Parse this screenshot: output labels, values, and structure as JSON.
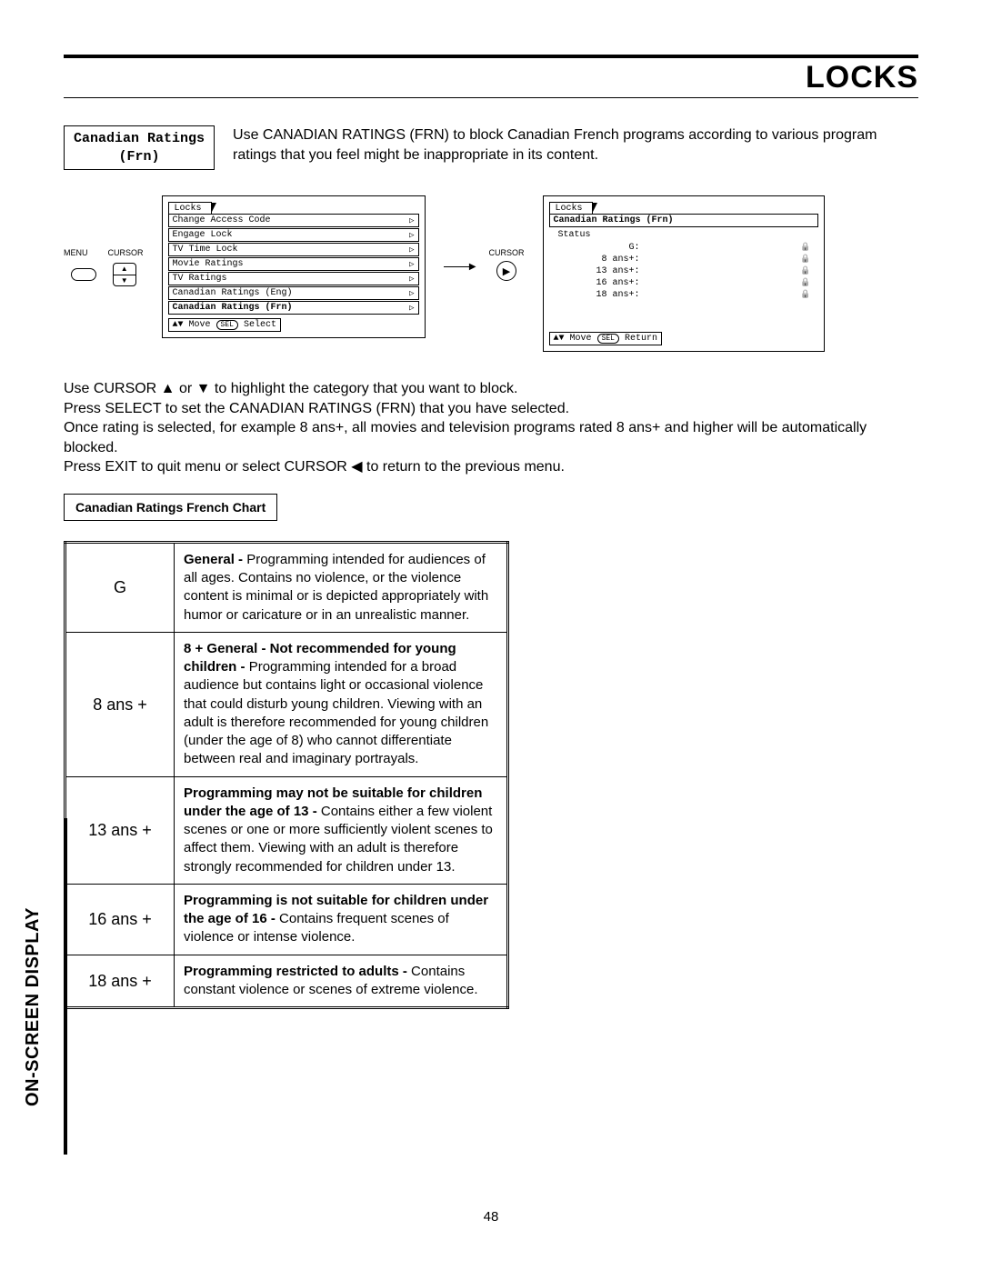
{
  "page_title": "LOCKS",
  "section_box": {
    "line1": "Canadian Ratings",
    "line2": "(Frn)"
  },
  "intro_text": "Use CANADIAN RATINGS (FRN) to block Canadian French programs according to various program ratings that you feel might be inappropriate in its content.",
  "remote": {
    "menu_label": "MENU",
    "cursor_label": "CURSOR"
  },
  "osd_left": {
    "tab": "Locks",
    "items": [
      "Change Access Code",
      "Engage Lock",
      "TV Time Lock",
      "Movie Ratings",
      "TV Ratings",
      "Canadian Ratings (Eng)",
      "Canadian Ratings (Frn)"
    ],
    "selected_index": 6,
    "footer_move": "Move",
    "footer_btn": "SEL",
    "footer_action": "Select"
  },
  "cursor_mid": {
    "label": "CURSOR",
    "glyph": "▶"
  },
  "osd_right": {
    "tab": "Locks",
    "subtab": "Canadian Ratings (Frn)",
    "status_label": "Status",
    "rows": [
      {
        "label": "G:"
      },
      {
        "label": "8 ans+:"
      },
      {
        "label": "13 ans+:"
      },
      {
        "label": "16 ans+:"
      },
      {
        "label": "18 ans+:"
      }
    ],
    "footer_move": "Move",
    "footer_btn": "SEL",
    "footer_action": "Return"
  },
  "instructions": {
    "l1": "Use CURSOR ▲ or ▼ to highlight the category that you want to block.",
    "l2": "Press SELECT to set the CANADIAN RATINGS (FRN) that you have selected.",
    "l3": "Once rating is selected, for example 8 ans+, all movies and television programs rated 8 ans+ and higher will be automatically blocked.",
    "l4": "Press EXIT to quit menu or select CURSOR ◀ to return to the previous menu."
  },
  "chart_label": "Canadian Ratings French Chart",
  "ratings": [
    {
      "code": "G",
      "bold": "General - ",
      "text": "Programming intended for audiences of all ages.  Contains no violence, or the violence content is minimal or is depicted appropriately with humor or caricature or in an unrealistic manner."
    },
    {
      "code": "8 ans +",
      "bold": "8 + General - Not recommended for young children -  ",
      "text": "Programming intended for a broad audience but contains light or occasional violence that could disturb young children.  Viewing with an adult is therefore recommended for young children (under the age of 8) who cannot differentiate between real and imaginary portrayals."
    },
    {
      "code": "13 ans +",
      "bold": "Programming may not be suitable for children under the age of 13 - ",
      "text": "Contains either a few violent scenes or one or more sufficiently violent scenes to affect them.  Viewing with an adult is therefore strongly recommended for children under 13."
    },
    {
      "code": "16 ans +",
      "bold": "Programming is not suitable for children under the age of 16 - ",
      "text": "Contains frequent scenes of violence or intense violence."
    },
    {
      "code": "18 ans +",
      "bold": "Programming restricted to adults -  ",
      "text": "Contains constant violence or scenes of extreme violence."
    }
  ],
  "side_label": "ON-SCREEN DISPLAY",
  "page_number": "48"
}
